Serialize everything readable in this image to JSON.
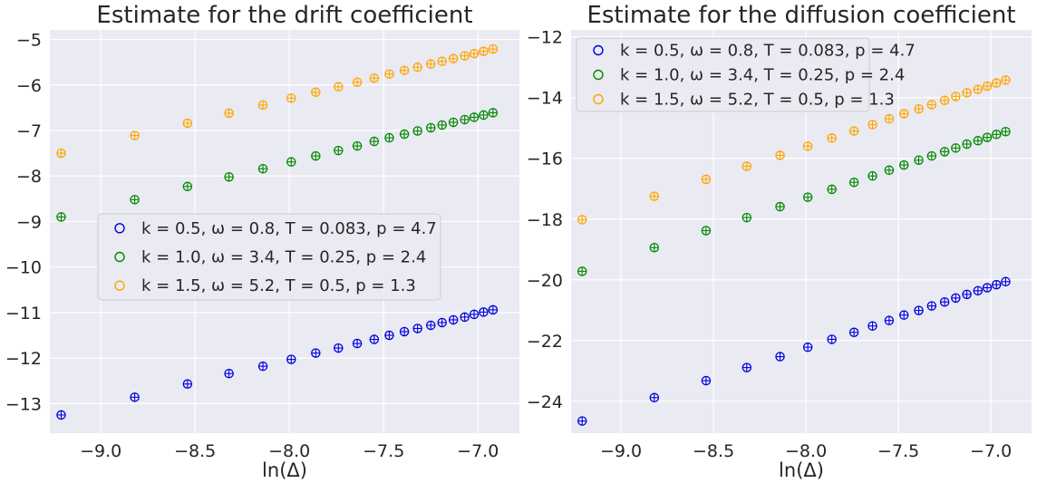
{
  "chart_data": [
    {
      "type": "scatter",
      "title": "Estimate for the drift coefficient",
      "xlabel": "ln(Δ)",
      "ylabel": "",
      "xlim": [
        -9.27,
        -6.78
      ],
      "ylim": [
        -13.65,
        -4.79
      ],
      "xticks": [
        -9.0,
        -8.5,
        -8.0,
        -7.5,
        -7.0
      ],
      "xtick_labels": [
        "−9.0",
        "−8.5",
        "−8.0",
        "−7.5",
        "−7.0"
      ],
      "yticks": [
        -13,
        -12,
        -11,
        -10,
        -9,
        -8,
        -7,
        -6,
        -5
      ],
      "ytick_labels": [
        "−13",
        "−12",
        "−11",
        "−10",
        "−9",
        "−8",
        "−7",
        "−6",
        "−5"
      ],
      "grid": true,
      "legend_position": "center-left",
      "x": [
        -9.21,
        -8.82,
        -8.54,
        -8.32,
        -8.14,
        -7.99,
        -7.86,
        -7.74,
        -7.64,
        -7.55,
        -7.47,
        -7.39,
        -7.32,
        -7.25,
        -7.19,
        -7.13,
        -7.07,
        -7.02,
        -6.97,
        -6.92
      ],
      "series": [
        {
          "name": "k = 0.5, ω = 0.8, T = 0.083, p = 4.7",
          "color": "#0000dd",
          "values": [
            -13.25,
            -12.86,
            -12.57,
            -12.34,
            -12.18,
            -12.03,
            -11.89,
            -11.78,
            -11.68,
            -11.59,
            -11.5,
            -11.42,
            -11.35,
            -11.28,
            -11.22,
            -11.16,
            -11.1,
            -11.04,
            -10.99,
            -10.94
          ]
        },
        {
          "name": "k = 1.0, ω = 3.4, T = 0.25, p = 2.4",
          "color": "#008800",
          "values": [
            -8.9,
            -8.52,
            -8.23,
            -8.02,
            -7.84,
            -7.69,
            -7.56,
            -7.44,
            -7.34,
            -7.24,
            -7.16,
            -7.08,
            -7.01,
            -6.94,
            -6.88,
            -6.82,
            -6.76,
            -6.71,
            -6.66,
            -6.61
          ]
        },
        {
          "name": "k = 1.5, ω = 5.2, T = 0.5, p = 1.3",
          "color": "#ffa500",
          "values": [
            -7.5,
            -7.11,
            -6.84,
            -6.62,
            -6.44,
            -6.29,
            -6.16,
            -6.04,
            -5.94,
            -5.85,
            -5.76,
            -5.68,
            -5.61,
            -5.54,
            -5.48,
            -5.42,
            -5.36,
            -5.31,
            -5.26,
            -5.21
          ]
        }
      ]
    },
    {
      "type": "scatter",
      "title": "Estimate for the diffusion coefficient",
      "xlabel": "ln(Δ)",
      "ylabel": "",
      "xlim": [
        -9.27,
        -6.78
      ],
      "ylim": [
        -25.05,
        -11.77
      ],
      "xticks": [
        -9.0,
        -8.5,
        -8.0,
        -7.5,
        -7.0
      ],
      "xtick_labels": [
        "−9.0",
        "−8.5",
        "−8.0",
        "−7.5",
        "−7.0"
      ],
      "yticks": [
        -24,
        -22,
        -20,
        -18,
        -16,
        -14,
        -12
      ],
      "ytick_labels": [
        "−24",
        "−22",
        "−20",
        "−18",
        "−16",
        "−14",
        "−12"
      ],
      "grid": true,
      "legend_position": "top-left",
      "x": [
        -9.21,
        -8.82,
        -8.54,
        -8.32,
        -8.14,
        -7.99,
        -7.86,
        -7.74,
        -7.64,
        -7.55,
        -7.47,
        -7.39,
        -7.32,
        -7.25,
        -7.19,
        -7.13,
        -7.07,
        -7.02,
        -6.97,
        -6.92
      ],
      "series": [
        {
          "name": "k = 0.5, ω = 0.8, T = 0.083, p = 4.7",
          "color": "#0000dd",
          "values": [
            -24.65,
            -23.88,
            -23.32,
            -22.89,
            -22.53,
            -22.22,
            -21.96,
            -21.73,
            -21.52,
            -21.34,
            -21.16,
            -21.01,
            -20.86,
            -20.73,
            -20.6,
            -20.48,
            -20.36,
            -20.26,
            -20.16,
            -20.06
          ]
        },
        {
          "name": "k = 1.0, ω = 3.4, T = 0.25, p = 2.4",
          "color": "#008800",
          "values": [
            -19.72,
            -18.94,
            -18.38,
            -17.95,
            -17.59,
            -17.28,
            -17.02,
            -16.79,
            -16.58,
            -16.39,
            -16.22,
            -16.06,
            -15.92,
            -15.78,
            -15.66,
            -15.53,
            -15.42,
            -15.31,
            -15.21,
            -15.12
          ]
        },
        {
          "name": "k = 1.5, ω = 5.2, T = 0.5, p = 1.3",
          "color": "#ffa500",
          "values": [
            -18.02,
            -17.25,
            -16.69,
            -16.26,
            -15.9,
            -15.6,
            -15.33,
            -15.1,
            -14.89,
            -14.7,
            -14.53,
            -14.37,
            -14.23,
            -14.09,
            -13.96,
            -13.84,
            -13.73,
            -13.62,
            -13.52,
            -13.42
          ]
        }
      ]
    }
  ]
}
